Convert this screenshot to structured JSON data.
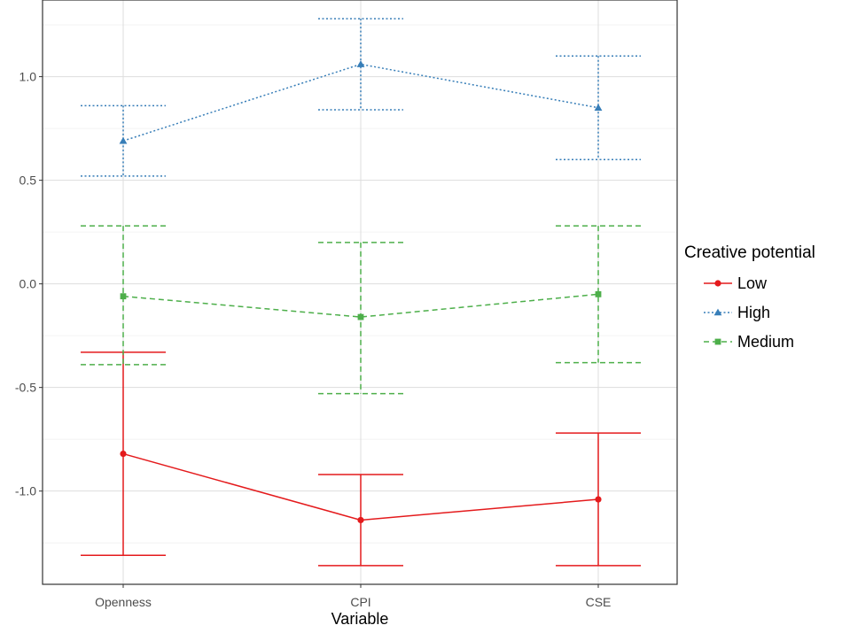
{
  "chart_data": {
    "type": "line",
    "title": "",
    "xlabel": "Variable",
    "ylabel": "",
    "categories": [
      "Openness",
      "CPI",
      "CSE"
    ],
    "ylim": [
      -1.45,
      1.37
    ],
    "y_ticks": [
      -1.0,
      -0.5,
      0.0,
      0.5,
      1.0
    ],
    "y_tick_labels": [
      "-1.0",
      "-0.5",
      "0.0",
      "0.5",
      "1.0"
    ],
    "grid": true,
    "legend": {
      "title": "Creative potential",
      "placement": "right"
    },
    "series": [
      {
        "name": "Low",
        "color": "#e41a1c",
        "line_style": "solid",
        "marker": "circle",
        "values": [
          -0.82,
          -1.14,
          -1.04
        ],
        "error_low": [
          -1.31,
          -1.36,
          -1.36
        ],
        "error_high": [
          -0.33,
          -0.92,
          -0.72
        ]
      },
      {
        "name": "High",
        "color": "#377eb8",
        "line_style": "dotted",
        "marker": "triangle",
        "values": [
          0.69,
          1.06,
          0.85
        ],
        "error_low": [
          0.52,
          0.84,
          0.6
        ],
        "error_high": [
          0.86,
          1.28,
          1.1
        ]
      },
      {
        "name": "Medium",
        "color": "#4daf4a",
        "line_style": "dashed",
        "marker": "square",
        "values": [
          -0.06,
          -0.16,
          -0.05
        ],
        "error_low": [
          -0.39,
          -0.53,
          -0.38
        ],
        "error_high": [
          0.28,
          0.2,
          0.28
        ]
      }
    ]
  }
}
